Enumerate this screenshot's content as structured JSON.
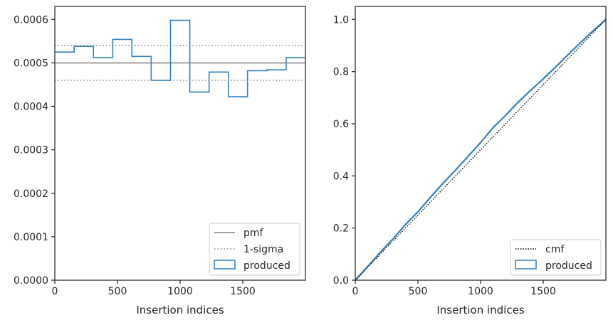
{
  "chart_data": [
    {
      "type": "histogram-step",
      "xlabel": "Insertion indices",
      "ylabel": "",
      "xlim": [
        0,
        2000
      ],
      "ylim": [
        0,
        0.00063
      ],
      "xticks": [
        0,
        500,
        1000,
        1500
      ],
      "xtick_labels": [
        "0",
        "500",
        "1000",
        "1500"
      ],
      "yticks": [
        0,
        0.0001,
        0.0002,
        0.0003,
        0.0004,
        0.0005,
        0.0006
      ],
      "ytick_labels": [
        "0.0000",
        "0.0001",
        "0.0002",
        "0.0003",
        "0.0004",
        "0.0005",
        "0.0006"
      ],
      "bin_edges": [
        0,
        154,
        308,
        462,
        615,
        769,
        923,
        1077,
        1231,
        1385,
        1538,
        1692,
        1846,
        2000
      ],
      "values": [
        0.000525,
        0.000538,
        0.000512,
        0.000554,
        0.000515,
        0.00046,
        0.000598,
        0.000433,
        0.000479,
        0.000422,
        0.000482,
        0.000484,
        0.000512
      ],
      "reference_lines": [
        {
          "name": "pmf",
          "y": 0.0005,
          "style": "solid",
          "color": "#808080"
        },
        {
          "name": "1-sigma",
          "y": 0.00054,
          "style": "dotted",
          "color": "#808080"
        },
        {
          "name": "1-sigma",
          "y": 0.00046,
          "style": "dotted",
          "color": "#808080"
        }
      ],
      "series_name": "produced",
      "series_color": "#3182bd",
      "legend": {
        "position": "lower-right",
        "entries": [
          "pmf",
          "1-sigma",
          "produced"
        ]
      }
    },
    {
      "type": "line",
      "xlabel": "Insertion indices",
      "ylabel": "",
      "xlim": [
        0,
        2000
      ],
      "ylim": [
        0,
        1.05
      ],
      "xticks": [
        0,
        500,
        1000,
        1500
      ],
      "xtick_labels": [
        "0",
        "500",
        "1000",
        "1500"
      ],
      "yticks": [
        0,
        0.2,
        0.4,
        0.6,
        0.8,
        1.0
      ],
      "ytick_labels": [
        "0.0",
        "0.2",
        "0.4",
        "0.6",
        "0.8",
        "1.0"
      ],
      "series": [
        {
          "name": "cmf",
          "style": "dotted",
          "color": "#000000",
          "x": [
            0,
            2000
          ],
          "y": [
            0,
            1.0
          ]
        },
        {
          "name": "produced",
          "style": "solid",
          "color": "#3182bd",
          "x": [
            0,
            100,
            200,
            300,
            400,
            500,
            600,
            700,
            800,
            900,
            1000,
            1100,
            1200,
            1300,
            1400,
            1500,
            1600,
            1700,
            1800,
            1900,
            2000
          ],
          "y": [
            0,
            0.053,
            0.107,
            0.158,
            0.213,
            0.262,
            0.318,
            0.372,
            0.422,
            0.475,
            0.528,
            0.585,
            0.632,
            0.683,
            0.728,
            0.772,
            0.818,
            0.866,
            0.912,
            0.957,
            1.0
          ]
        }
      ],
      "legend": {
        "position": "lower-right",
        "entries": [
          "cmf",
          "produced"
        ]
      }
    }
  ]
}
